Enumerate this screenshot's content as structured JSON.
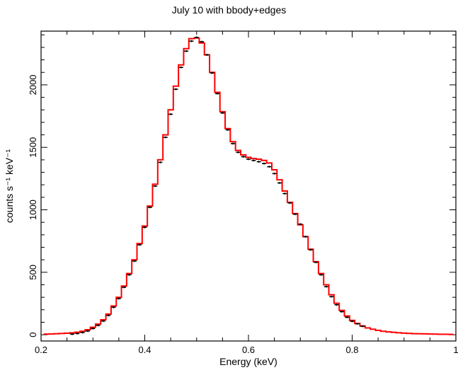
{
  "chart_data": {
    "type": "line",
    "title": "July 10 with bbody+edges",
    "xlabel": "Energy (keV)",
    "ylabel": "counts s⁻¹ keV⁻¹",
    "xlim": [
      0.2,
      1.0
    ],
    "ylim": [
      -50,
      2430
    ],
    "x_ticks": [
      "0.2",
      "0.4",
      "0.6",
      "0.8",
      "1"
    ],
    "y_ticks": [
      "0",
      "500",
      "1000",
      "1500",
      "2000"
    ],
    "grid": false,
    "legend": "none",
    "series": [
      {
        "role": "data",
        "color": "#000000",
        "points": [
          [
            0.26,
            15
          ],
          [
            0.27,
            20
          ],
          [
            0.28,
            28
          ],
          [
            0.29,
            40
          ],
          [
            0.3,
            60
          ],
          [
            0.31,
            85
          ],
          [
            0.32,
            120
          ],
          [
            0.33,
            165
          ],
          [
            0.34,
            230
          ],
          [
            0.35,
            300
          ],
          [
            0.36,
            390
          ],
          [
            0.37,
            490
          ],
          [
            0.38,
            600
          ],
          [
            0.39,
            730
          ],
          [
            0.4,
            870
          ],
          [
            0.41,
            1030
          ],
          [
            0.42,
            1200
          ],
          [
            0.43,
            1390
          ],
          [
            0.44,
            1590
          ],
          [
            0.45,
            1775
          ],
          [
            0.46,
            1975
          ],
          [
            0.47,
            2150
          ],
          [
            0.48,
            2280
          ],
          [
            0.49,
            2360
          ],
          [
            0.5,
            2390
          ],
          [
            0.51,
            2355
          ],
          [
            0.52,
            2250
          ],
          [
            0.53,
            2105
          ],
          [
            0.54,
            1940
          ],
          [
            0.55,
            1785
          ],
          [
            0.56,
            1650
          ],
          [
            0.57,
            1540
          ],
          [
            0.58,
            1470
          ],
          [
            0.59,
            1435
          ],
          [
            0.6,
            1415
          ],
          [
            0.61,
            1405
          ],
          [
            0.62,
            1395
          ],
          [
            0.63,
            1380
          ],
          [
            0.64,
            1355
          ],
          [
            0.65,
            1300
          ],
          [
            0.66,
            1225
          ],
          [
            0.67,
            1140
          ],
          [
            0.68,
            1065
          ],
          [
            0.69,
            975
          ],
          [
            0.7,
            895
          ],
          [
            0.71,
            795
          ],
          [
            0.72,
            690
          ],
          [
            0.73,
            590
          ],
          [
            0.74,
            490
          ],
          [
            0.75,
            395
          ],
          [
            0.76,
            315
          ],
          [
            0.77,
            250
          ],
          [
            0.78,
            195
          ],
          [
            0.79,
            150
          ],
          [
            0.8,
            118
          ],
          [
            0.81,
            98
          ],
          [
            0.82,
            78
          ]
        ]
      },
      {
        "role": "model",
        "color": "#ff0000",
        "steps": [
          [
            0.21,
            5
          ],
          [
            0.22,
            6
          ],
          [
            0.23,
            8
          ],
          [
            0.24,
            10
          ],
          [
            0.25,
            12
          ],
          [
            0.26,
            15
          ],
          [
            0.27,
            20
          ],
          [
            0.28,
            28
          ],
          [
            0.29,
            40
          ],
          [
            0.3,
            60
          ],
          [
            0.31,
            85
          ],
          [
            0.32,
            120
          ],
          [
            0.33,
            165
          ],
          [
            0.34,
            230
          ],
          [
            0.35,
            300
          ],
          [
            0.36,
            390
          ],
          [
            0.37,
            490
          ],
          [
            0.38,
            600
          ],
          [
            0.39,
            730
          ],
          [
            0.4,
            870
          ],
          [
            0.41,
            1030
          ],
          [
            0.42,
            1205
          ],
          [
            0.43,
            1400
          ],
          [
            0.44,
            1600
          ],
          [
            0.45,
            1800
          ],
          [
            0.46,
            1990
          ],
          [
            0.47,
            2160
          ],
          [
            0.48,
            2290
          ],
          [
            0.49,
            2370
          ],
          [
            0.5,
            2375
          ],
          [
            0.51,
            2335
          ],
          [
            0.52,
            2240
          ],
          [
            0.53,
            2100
          ],
          [
            0.54,
            1940
          ],
          [
            0.55,
            1785
          ],
          [
            0.56,
            1650
          ],
          [
            0.57,
            1545
          ],
          [
            0.58,
            1475
          ],
          [
            0.59,
            1440
          ],
          [
            0.6,
            1420
          ],
          [
            0.61,
            1410
          ],
          [
            0.62,
            1405
          ],
          [
            0.63,
            1395
          ],
          [
            0.64,
            1375
          ],
          [
            0.65,
            1320
          ],
          [
            0.66,
            1240
          ],
          [
            0.67,
            1150
          ],
          [
            0.68,
            1060
          ],
          [
            0.69,
            970
          ],
          [
            0.7,
            880
          ],
          [
            0.71,
            785
          ],
          [
            0.72,
            685
          ],
          [
            0.73,
            585
          ],
          [
            0.74,
            490
          ],
          [
            0.75,
            400
          ],
          [
            0.76,
            320
          ],
          [
            0.77,
            252
          ],
          [
            0.78,
            195
          ],
          [
            0.79,
            150
          ],
          [
            0.8,
            115
          ],
          [
            0.81,
            90
          ],
          [
            0.82,
            70
          ],
          [
            0.83,
            55
          ],
          [
            0.84,
            44
          ],
          [
            0.85,
            35
          ],
          [
            0.86,
            28
          ],
          [
            0.87,
            23
          ],
          [
            0.88,
            19
          ],
          [
            0.89,
            16
          ],
          [
            0.9,
            13
          ],
          [
            0.91,
            11
          ],
          [
            0.92,
            9
          ],
          [
            0.93,
            8
          ],
          [
            0.94,
            7
          ],
          [
            0.95,
            6
          ],
          [
            0.96,
            5
          ],
          [
            0.97,
            4
          ],
          [
            0.98,
            4
          ],
          [
            0.99,
            3
          ]
        ]
      }
    ]
  }
}
